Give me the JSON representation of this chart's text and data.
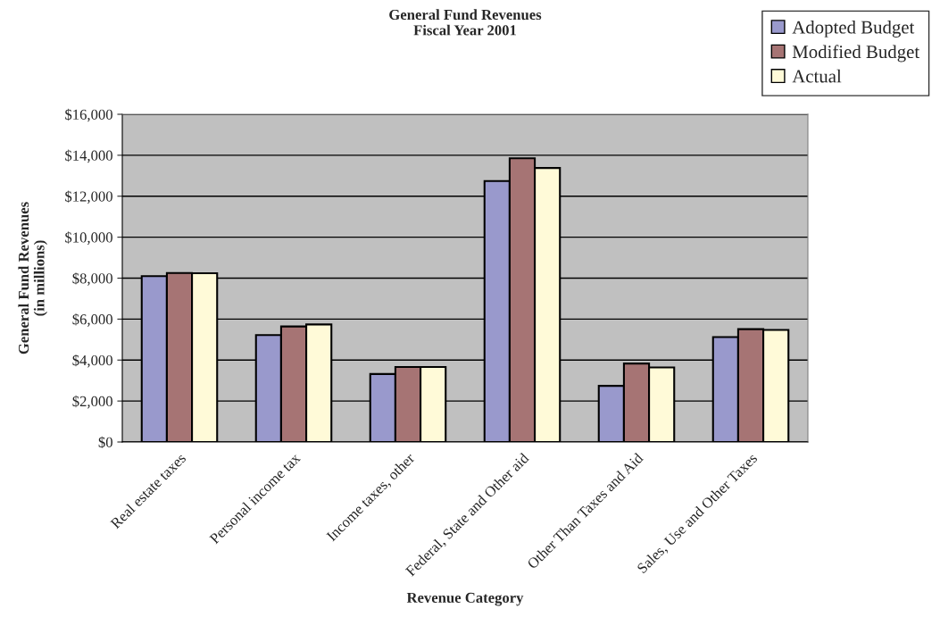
{
  "chart_data": {
    "type": "bar",
    "title": "General Fund Revenues\nFiscal Year 2001",
    "xlabel": "Revenue Category",
    "ylabel": "General Fund Revenues\n(in millions)",
    "categories": [
      "Real estate taxes",
      "Personal income tax",
      "Income taxes, other",
      "Federal, State and Other aid",
      "Other Than Taxes and Aid",
      "Sales, Use and Other Taxes"
    ],
    "series": [
      {
        "name": "Adopted Budget",
        "color": "#9999cc",
        "values": [
          8100,
          5220,
          3320,
          12740,
          2740,
          5120
        ]
      },
      {
        "name": "Modified Budget",
        "color": "#a67474",
        "values": [
          8250,
          5640,
          3660,
          13850,
          3830,
          5510
        ]
      },
      {
        "name": "Actual",
        "color": "#fffad8",
        "values": [
          8240,
          5740,
          3660,
          13380,
          3640,
          5470
        ]
      }
    ],
    "ylim": [
      0,
      16000
    ],
    "yticks": [
      {
        "value": 0,
        "label": "$0"
      },
      {
        "value": 2000,
        "label": "$2,000"
      },
      {
        "value": 4000,
        "label": "$4,000"
      },
      {
        "value": 6000,
        "label": "$6,000"
      },
      {
        "value": 8000,
        "label": "$8,000"
      },
      {
        "value": 10000,
        "label": "$10,000"
      },
      {
        "value": 12000,
        "label": "$12,000"
      },
      {
        "value": 14000,
        "label": "$14,000"
      },
      {
        "value": 16000,
        "label": "$16,000"
      }
    ],
    "grid": "y",
    "legend": "top right"
  }
}
